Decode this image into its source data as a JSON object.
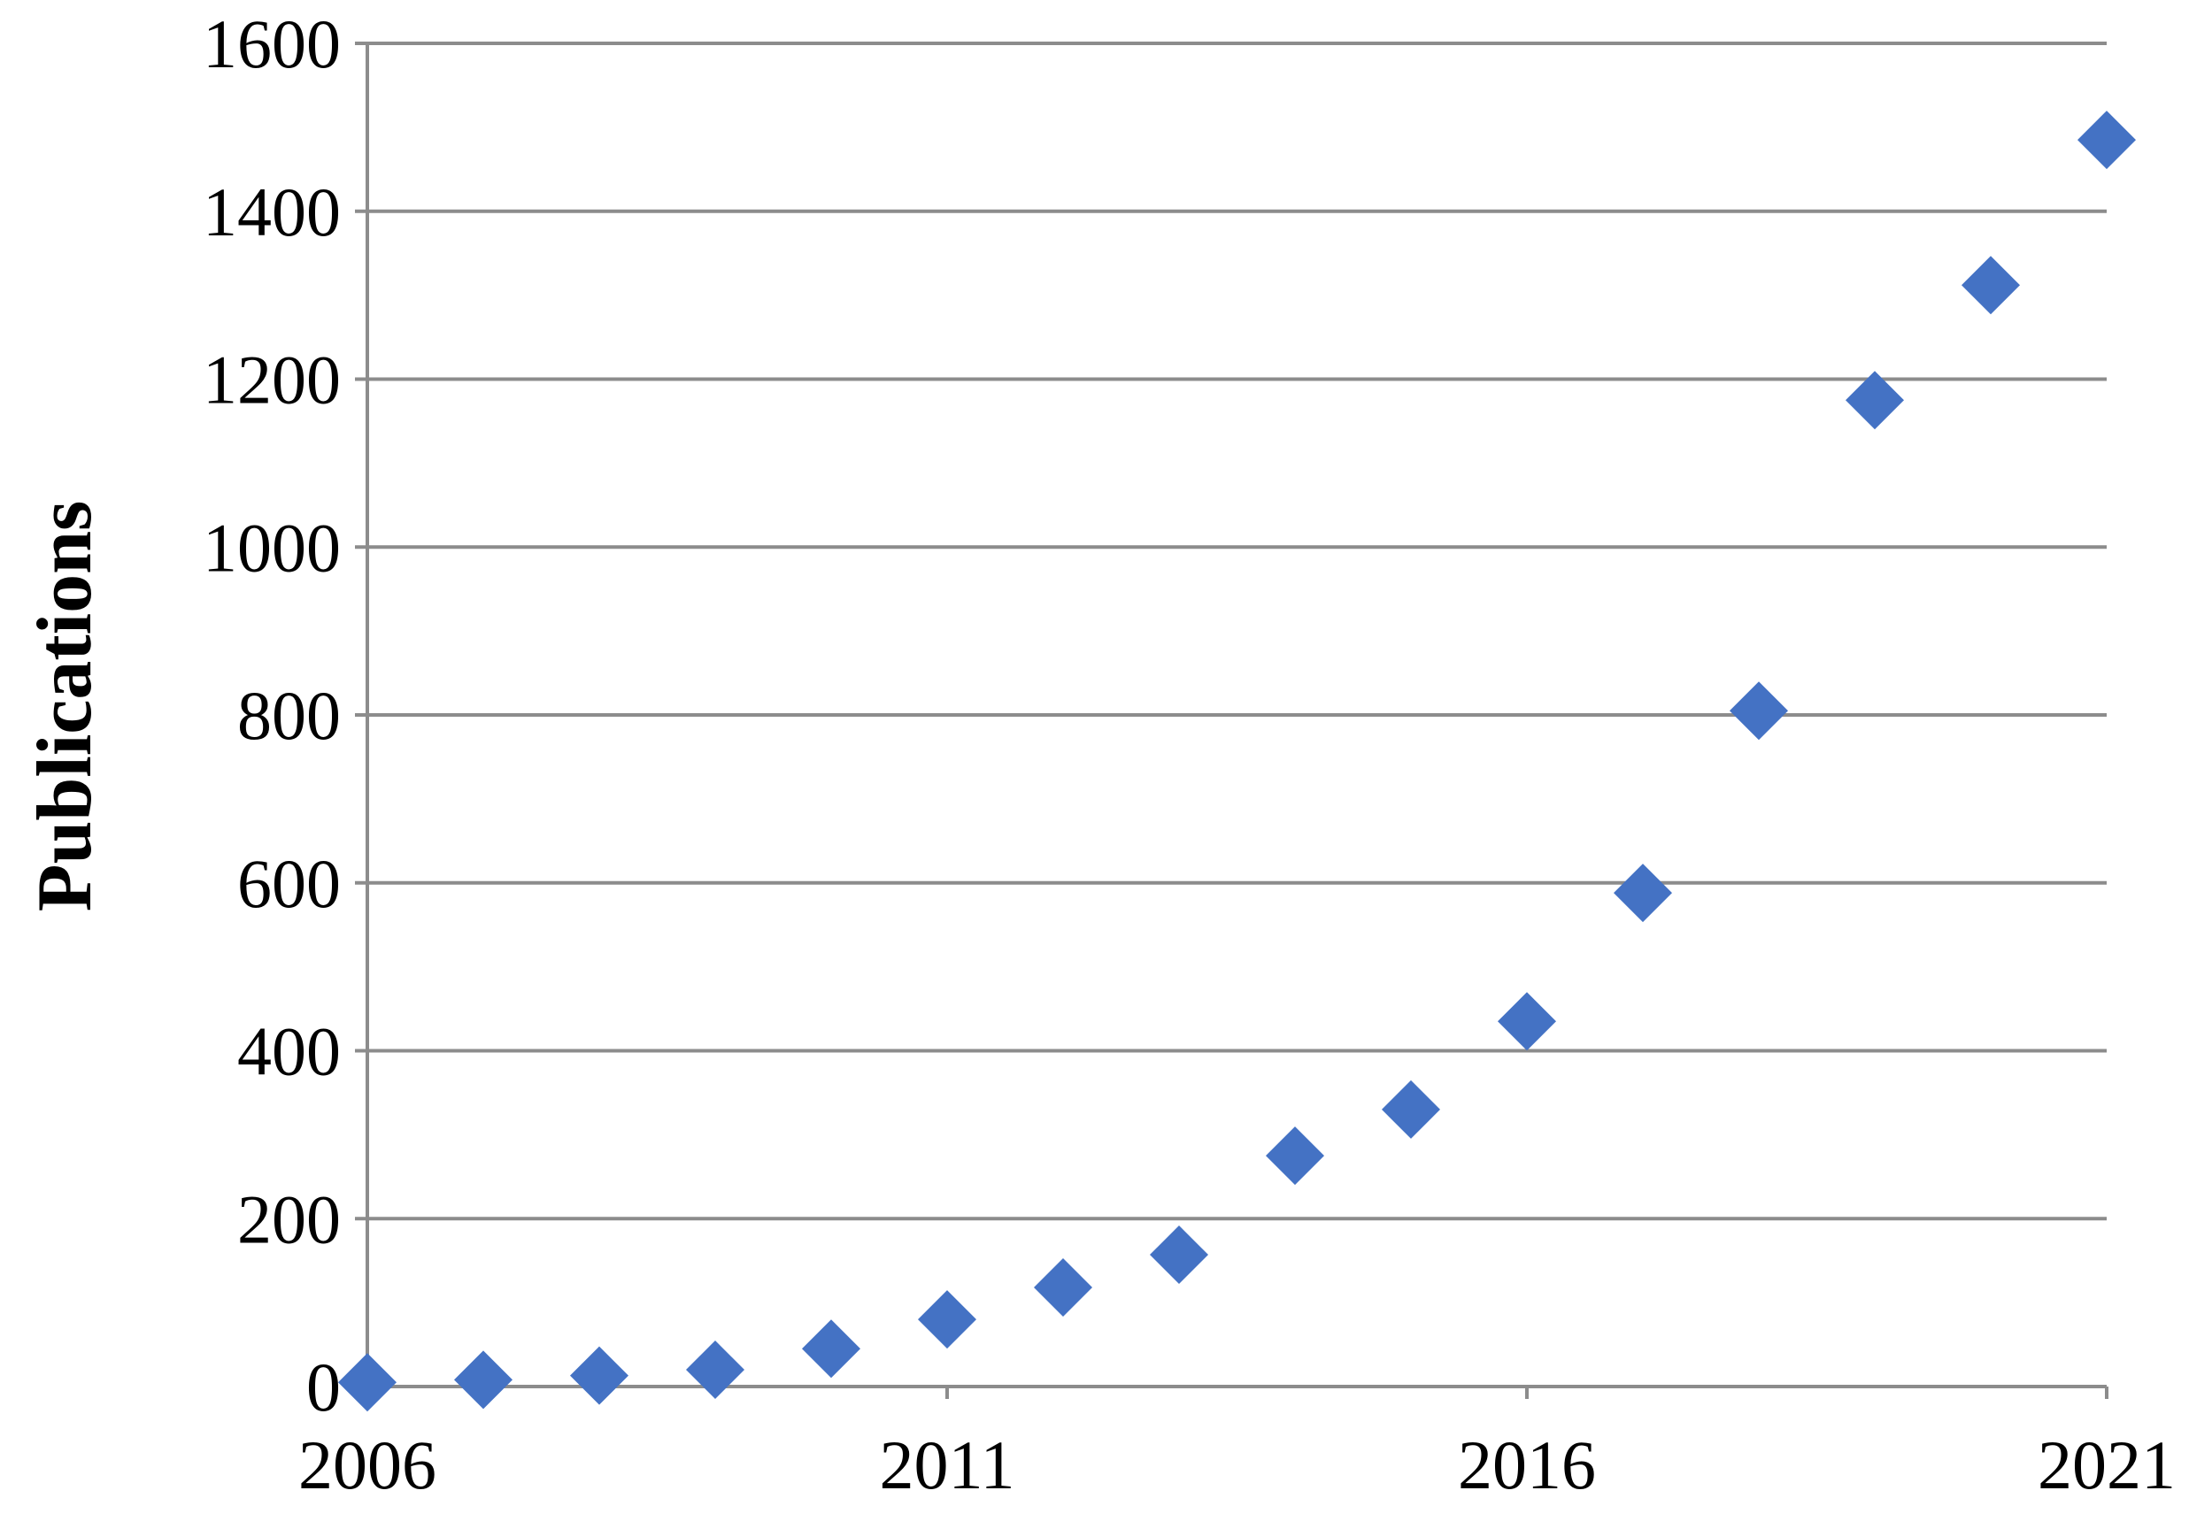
{
  "chart_data": {
    "type": "scatter",
    "title": "",
    "xlabel": "",
    "ylabel": "Publications",
    "xlim": [
      2006,
      2021
    ],
    "ylim": [
      0,
      1600
    ],
    "x_ticks": [
      2006,
      2011,
      2016,
      2021
    ],
    "y_ticks": [
      0,
      200,
      400,
      600,
      800,
      1000,
      1200,
      1400,
      1600
    ],
    "grid": "horizontal",
    "marker": "diamond",
    "color": "#4472C4",
    "x": [
      2006,
      2007,
      2008,
      2009,
      2010,
      2011,
      2012,
      2013,
      2014,
      2015,
      2016,
      2017,
      2018,
      2019,
      2020,
      2021
    ],
    "y": [
      5,
      8,
      13,
      20,
      45,
      80,
      118,
      157,
      275,
      330,
      435,
      588,
      805,
      1175,
      1312,
      1485
    ]
  }
}
